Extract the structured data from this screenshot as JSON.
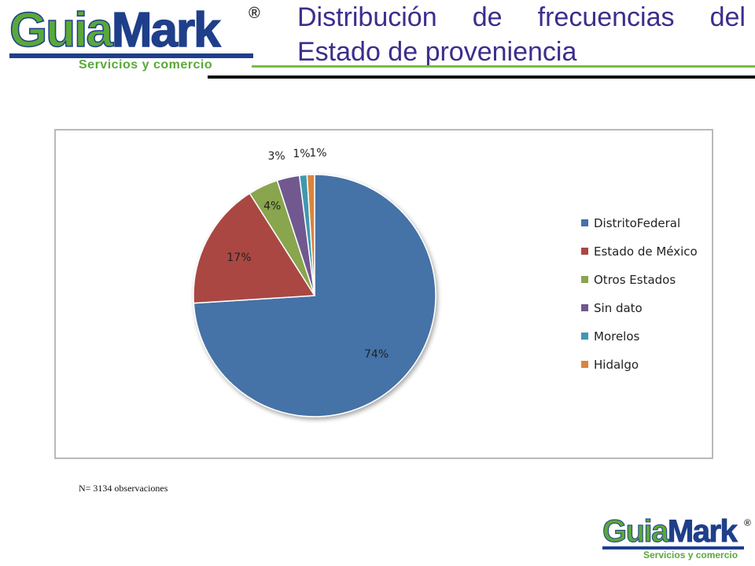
{
  "header": {
    "logo": {
      "word_a": "Guia",
      "word_b": "Mark",
      "registered": "®",
      "tagline": "Servicios y comercio"
    },
    "title": "Distribución de frecuencias del Estado de proveniencia"
  },
  "chart_data": {
    "type": "pie",
    "title": "",
    "categories": [
      "DistritoFederal",
      "Estado de México",
      "Otros Estados",
      "Sin dato",
      "Morelos",
      "Hidalgo"
    ],
    "values": [
      74,
      17,
      4,
      3,
      1,
      1
    ],
    "labels": [
      "74%",
      "17%",
      "4%",
      "3%",
      "1%",
      "1%"
    ],
    "colors": [
      "#4572a7",
      "#aa4643",
      "#89a54e",
      "#71588f",
      "#4198af",
      "#db843d"
    ],
    "legend_position": "right",
    "start": "12 o'clock, clockwise"
  },
  "footnote": "N= 3134 observaciones",
  "footer": {
    "logo": {
      "word_a": "Guia",
      "word_b": "Mark",
      "registered": "®",
      "tagline": "Servicios y comercio"
    }
  }
}
